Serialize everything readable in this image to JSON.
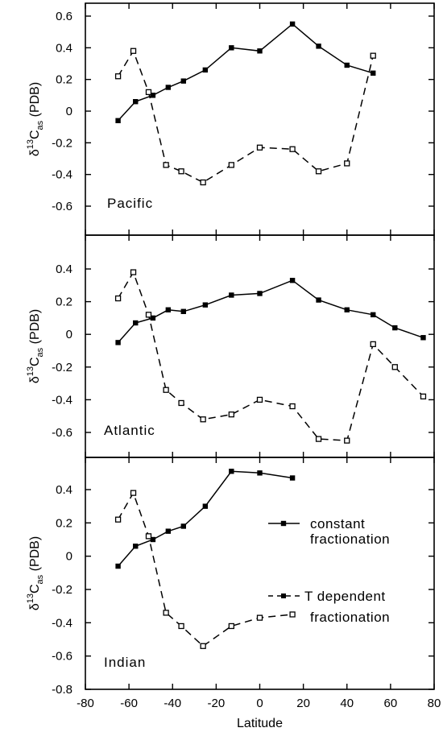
{
  "chart_data": {
    "type": "line",
    "xlabel": "Latitude",
    "xlim": [
      -80,
      80
    ],
    "xticks": [
      -80,
      -60,
      -40,
      -20,
      0,
      20,
      40,
      60,
      80
    ],
    "ylabel": {
      "prefix": "δ",
      "superscript": "13",
      "main": "C",
      "subscript": "as",
      "suffix": "(PDB)"
    },
    "grid": false,
    "legend": {
      "placement": "in Indian panel, right",
      "entries": [
        {
          "lines": [
            "constant",
            "fractionation"
          ],
          "style": "solid",
          "marker": "filled-square"
        },
        {
          "lines": [
            "T dependent",
            "fractionation"
          ],
          "style": "dashed",
          "marker": "open-square"
        }
      ]
    },
    "panels": [
      {
        "name": "Pacific",
        "ylim": [
          -0.8,
          0.6
        ],
        "yticks": [
          0.6,
          0.4,
          0.2,
          0,
          -0.2,
          -0.4,
          -0.6
        ],
        "series": [
          {
            "style": "solid",
            "marker": "filled-square",
            "x": [
              -65,
              -57,
              -49,
              -42,
              -35,
              -25,
              -13,
              0,
              15,
              27,
              40,
              52
            ],
            "y": [
              -0.06,
              0.06,
              0.1,
              0.15,
              0.19,
              0.26,
              0.4,
              0.38,
              0.55,
              0.41,
              0.29,
              0.24
            ]
          },
          {
            "style": "dashed",
            "marker": "open-square",
            "x": [
              -65,
              -58,
              -51,
              -43,
              -36,
              -26,
              -13,
              0,
              15,
              27,
              40,
              52
            ],
            "y": [
              0.22,
              0.38,
              0.12,
              -0.34,
              -0.38,
              -0.45,
              -0.34,
              -0.23,
              -0.24,
              -0.38,
              -0.33,
              0.35
            ]
          }
        ]
      },
      {
        "name": "Atlantic",
        "ylim": [
          -0.8,
          0.5
        ],
        "yticks": [
          0.4,
          0.2,
          0,
          -0.2,
          -0.4,
          -0.6
        ],
        "series": [
          {
            "style": "solid",
            "marker": "filled-square",
            "x": [
              -65,
              -57,
              -49,
              -42,
              -35,
              -25,
              -13,
              0,
              15,
              27,
              40,
              52,
              62,
              75
            ],
            "y": [
              -0.05,
              0.07,
              0.1,
              0.15,
              0.14,
              0.18,
              0.24,
              0.25,
              0.33,
              0.21,
              0.15,
              0.12,
              0.04,
              -0.02
            ]
          },
          {
            "style": "dashed",
            "marker": "open-square",
            "x": [
              -65,
              -58,
              -51,
              -43,
              -36,
              -26,
              -13,
              0,
              15,
              27,
              40,
              52,
              62,
              75
            ],
            "y": [
              0.22,
              0.38,
              0.12,
              -0.34,
              -0.42,
              -0.52,
              -0.49,
              -0.4,
              -0.44,
              -0.64,
              -0.65,
              -0.06,
              -0.2,
              -0.38
            ]
          }
        ]
      },
      {
        "name": "Indian",
        "ylim": [
          -0.8,
          0.55
        ],
        "yticks": [
          0.4,
          0.2,
          0,
          -0.2,
          -0.4,
          -0.6,
          -0.8
        ],
        "series": [
          {
            "style": "solid",
            "marker": "filled-square",
            "x": [
              -65,
              -57,
              -49,
              -42,
              -35,
              -25,
              -13,
              0,
              15
            ],
            "y": [
              -0.06,
              0.06,
              0.1,
              0.15,
              0.18,
              0.3,
              0.51,
              0.5,
              0.47
            ]
          },
          {
            "style": "dashed",
            "marker": "open-square",
            "x": [
              -65,
              -58,
              -51,
              -43,
              -36,
              -26,
              -13,
              0,
              15
            ],
            "y": [
              0.22,
              0.38,
              0.12,
              -0.34,
              -0.42,
              -0.54,
              -0.42,
              -0.37,
              -0.35
            ]
          }
        ]
      }
    ]
  }
}
